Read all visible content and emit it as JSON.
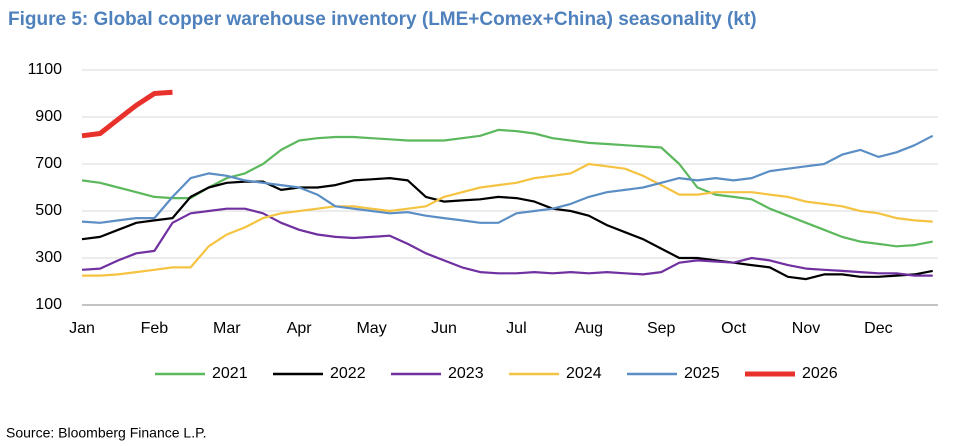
{
  "chart_data": {
    "type": "line",
    "title": "Figure 5: Global copper warehouse inventory (LME+Comex+China) seasonality (kt)",
    "categories": [
      "Jan",
      null,
      null,
      null,
      "Feb",
      null,
      null,
      null,
      "Mar",
      null,
      null,
      null,
      "Apr",
      null,
      null,
      null,
      "May",
      null,
      null,
      null,
      "Jun",
      null,
      null,
      null,
      "Jul",
      null,
      null,
      null,
      "Aug",
      null,
      null,
      null,
      "Sep",
      null,
      null,
      null,
      "Oct",
      null,
      null,
      null,
      "Nov",
      null,
      null,
      null,
      "Dec",
      null,
      null,
      null
    ],
    "ylim": [
      100,
      1100
    ],
    "yticks": [
      100,
      300,
      500,
      700,
      900,
      1100
    ],
    "grid": true,
    "series": [
      {
        "name": "2021",
        "color": "#5cb85c",
        "values": [
          630,
          620,
          600,
          580,
          560,
          555,
          555,
          600,
          640,
          660,
          700,
          760,
          800,
          810,
          815,
          815,
          810,
          805,
          800,
          800,
          800,
          810,
          820,
          845,
          840,
          830,
          810,
          800,
          790,
          785,
          780,
          775,
          770,
          700,
          600,
          570,
          560,
          550,
          510,
          480,
          450,
          420,
          390,
          370,
          360,
          350,
          355,
          370
        ]
      },
      {
        "name": "2022",
        "color": "#000000",
        "values": [
          380,
          390,
          420,
          450,
          460,
          470,
          560,
          600,
          620,
          625,
          625,
          590,
          600,
          600,
          610,
          630,
          635,
          640,
          630,
          560,
          540,
          545,
          550,
          560,
          555,
          540,
          510,
          500,
          480,
          440,
          410,
          380,
          340,
          300,
          300,
          290,
          280,
          270,
          260,
          220,
          210,
          230,
          230,
          220,
          220,
          225,
          230,
          245
        ]
      },
      {
        "name": "2023",
        "color": "#7030a0",
        "values": [
          250,
          255,
          290,
          320,
          330,
          450,
          490,
          500,
          510,
          510,
          490,
          450,
          420,
          400,
          390,
          385,
          390,
          395,
          360,
          320,
          290,
          260,
          240,
          235,
          235,
          240,
          235,
          240,
          235,
          240,
          235,
          230,
          240,
          280,
          290,
          285,
          280,
          300,
          290,
          270,
          255,
          250,
          245,
          240,
          235,
          235,
          225,
          225
        ]
      },
      {
        "name": "2024",
        "color": "#f5c342",
        "values": [
          225,
          225,
          230,
          240,
          250,
          260,
          260,
          350,
          400,
          430,
          470,
          490,
          500,
          510,
          520,
          520,
          510,
          500,
          510,
          520,
          560,
          580,
          600,
          610,
          620,
          640,
          650,
          660,
          700,
          690,
          680,
          650,
          610,
          570,
          570,
          580,
          580,
          580,
          570,
          560,
          540,
          530,
          520,
          500,
          490,
          470,
          460,
          455
        ]
      },
      {
        "name": "2025",
        "color": "#5b8ec4",
        "values": [
          455,
          450,
          460,
          470,
          470,
          560,
          640,
          660,
          650,
          630,
          620,
          610,
          600,
          570,
          520,
          510,
          500,
          490,
          495,
          480,
          470,
          460,
          450,
          450,
          490,
          500,
          510,
          530,
          560,
          580,
          590,
          600,
          620,
          640,
          630,
          640,
          630,
          640,
          670,
          680,
          690,
          700,
          740,
          760,
          730,
          750,
          780,
          820
        ]
      },
      {
        "name": "2026",
        "color": "#e8312a",
        "values": [
          820,
          830,
          890,
          950,
          1000,
          1005,
          null,
          null,
          null,
          null,
          null,
          null,
          null,
          null,
          null,
          null,
          null,
          null,
          null,
          null,
          null,
          null,
          null,
          null,
          null,
          null,
          null,
          null,
          null,
          null,
          null,
          null,
          null,
          null,
          null,
          null,
          null,
          null,
          null,
          null,
          null,
          null,
          null,
          null,
          null,
          null,
          null,
          null
        ]
      }
    ]
  },
  "source": "Source: Bloomberg Finance L.P."
}
